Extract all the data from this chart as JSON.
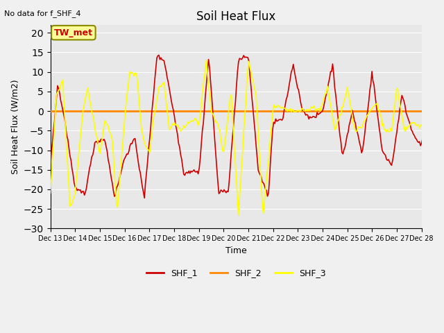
{
  "title": "Soil Heat Flux",
  "subtitle": "No data for f_SHF_4",
  "ylabel": "Soil Heat Flux (W/m2)",
  "xlabel": "Time",
  "ylim": [
    -30,
    22
  ],
  "yticks": [
    -30,
    -25,
    -20,
    -15,
    -10,
    -5,
    0,
    5,
    10,
    15,
    20
  ],
  "xtick_labels": [
    "Dec 13",
    "Dec 14",
    "Dec 15",
    "Dec 16",
    "Dec 17",
    "Dec 18",
    "Dec 19",
    "Dec 20",
    "Dec 21",
    "Dec 22",
    "Dec 23",
    "Dec 24",
    "Dec 25",
    "Dec 26",
    "Dec 27",
    "Dec 28"
  ],
  "legend_labels": [
    "SHF_1",
    "SHF_2",
    "SHF_3"
  ],
  "colors": {
    "SHF_1": "#cc0000",
    "SHF_2": "#ff8800",
    "SHF_3": "#ffff00"
  },
  "box_label": "TW_met",
  "box_bg": "#ffff99",
  "box_border": "#888800",
  "bg_color": "#e8e8e8",
  "plot_bg": "#e8e8e8",
  "grid_color": "#ffffff",
  "shf2_value": 0.0
}
